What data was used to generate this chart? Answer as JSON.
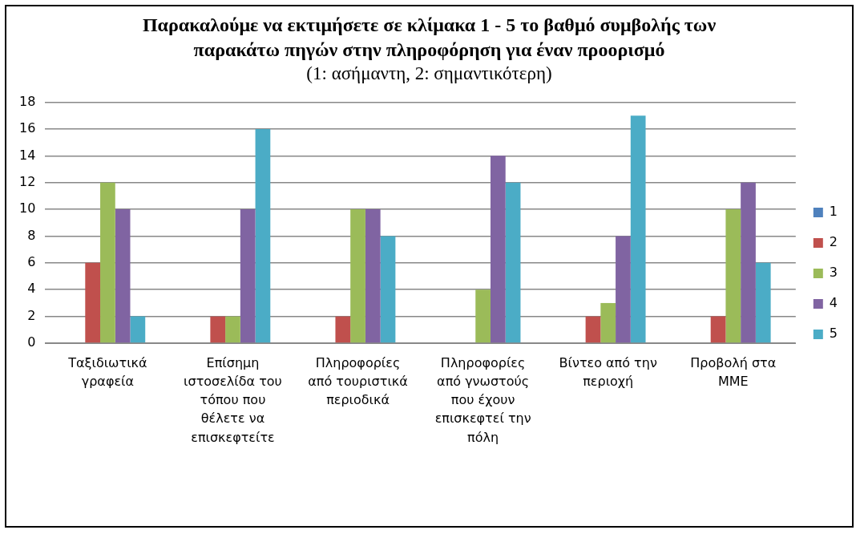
{
  "chart_data": {
    "type": "bar",
    "title": "Παρακαλούμε να εκτιμήσετε σε κλίμακα 1 - 5 το βαθμό συμβολής των παρακάτω πηγών στην πληροφόρηση για έναν προορισμό",
    "subtitle": "(1: ασήμαντη, 2: σημαντικότερη)",
    "categories": [
      "Ταξιδιωτικά γραφεία",
      "Επίσημη ιστοσελίδα του τόπου που θέλετε να επισκεφτείτε",
      "Πληροφορίες από τουριστικά περιοδικά",
      "Πληροφορίες από γνωστούς που έχουν επισκεφτεί την πόλη",
      "Βίντεο από την περιοχή",
      "Προβολή στα ΜΜΕ"
    ],
    "series": [
      {
        "name": "1",
        "color": "#4f81bd",
        "values": [
          0,
          0,
          0,
          0,
          0,
          0
        ]
      },
      {
        "name": "2",
        "color": "#c0504d",
        "values": [
          6,
          2,
          2,
          0,
          2,
          2
        ]
      },
      {
        "name": "3",
        "color": "#9bbb59",
        "values": [
          12,
          2,
          10,
          4,
          3,
          10
        ]
      },
      {
        "name": "4",
        "color": "#8064a2",
        "values": [
          10,
          10,
          10,
          14,
          8,
          12
        ]
      },
      {
        "name": "5",
        "color": "#4bacc6",
        "values": [
          2,
          16,
          8,
          12,
          17,
          6
        ]
      }
    ],
    "ylim": [
      0,
      18
    ],
    "yticks": [
      0,
      2,
      4,
      6,
      8,
      10,
      12,
      14,
      16,
      18
    ],
    "grid": "y",
    "legend": "right"
  }
}
